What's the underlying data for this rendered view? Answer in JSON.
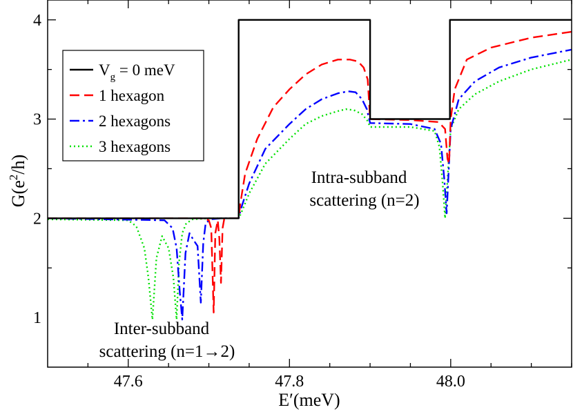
{
  "chart_data": {
    "type": "line",
    "title": "",
    "xlabel": {
      "main": "E",
      "prime": "′",
      "rest": "(meV)"
    },
    "ylabel": {
      "pre": "G(e",
      "sup": "2",
      "post": "/h)"
    },
    "xlim": [
      47.5,
      48.15
    ],
    "ylim": [
      0.5,
      4.2
    ],
    "xticks": [
      47.6,
      47.8,
      48.0
    ],
    "xtick_labels": [
      "47.6",
      "47.8",
      "48.0"
    ],
    "yticks": [
      1,
      2,
      3,
      4
    ],
    "ytick_labels": [
      "1",
      "2",
      "3",
      "4"
    ],
    "grid": false,
    "legend_position": "top-left",
    "series": [
      {
        "name": "V_g = 0 meV",
        "legend": {
          "pre": "V",
          "sub": "g",
          "post": " = 0 meV"
        },
        "color": "#000000",
        "dash": "",
        "x": [
          47.5,
          47.737,
          47.737,
          47.9,
          47.9,
          47.999,
          47.999,
          48.15
        ],
        "y": [
          2,
          2,
          4,
          4,
          3,
          3,
          4,
          4
        ]
      },
      {
        "name": "1 hexagon",
        "legend": {
          "pre": "1 hexagon",
          "sub": "",
          "post": ""
        },
        "color": "#ff0000",
        "dash": "14,7",
        "x": [
          47.5,
          47.69,
          47.7,
          47.703,
          47.706,
          47.708,
          47.711,
          47.713,
          47.715,
          47.717,
          47.719,
          47.722,
          47.73,
          47.737,
          47.739,
          47.745,
          47.76,
          47.78,
          47.8,
          47.82,
          47.84,
          47.86,
          47.875,
          47.885,
          47.892,
          47.897,
          47.9,
          47.95,
          47.985,
          47.993,
          47.996,
          47.998,
          48.0,
          48.005,
          48.02,
          48.05,
          48.1,
          48.15
        ],
        "y": [
          2,
          2,
          1.98,
          1.9,
          1.05,
          1.85,
          1.98,
          1.8,
          1.35,
          1.9,
          1.99,
          2,
          2,
          2,
          2.15,
          2.45,
          2.8,
          3.12,
          3.3,
          3.45,
          3.55,
          3.6,
          3.6,
          3.58,
          3.52,
          3.4,
          3.0,
          2.99,
          2.97,
          2.9,
          2.6,
          2.55,
          3.0,
          3.3,
          3.6,
          3.72,
          3.82,
          3.88
        ]
      },
      {
        "name": "2 hexagons",
        "legend": {
          "pre": "2 hexagons",
          "sub": "",
          "post": ""
        },
        "color": "#0000ff",
        "dash": "14,5,3,5",
        "x": [
          47.5,
          47.645,
          47.655,
          47.66,
          47.664,
          47.667,
          47.671,
          47.676,
          47.681,
          47.686,
          47.69,
          47.693,
          47.696,
          47.702,
          47.715,
          47.737,
          47.74,
          47.75,
          47.77,
          47.8,
          47.82,
          47.84,
          47.86,
          47.873,
          47.882,
          47.89,
          47.896,
          47.9,
          47.95,
          47.98,
          47.988,
          47.992,
          47.995,
          48.0,
          48.01,
          48.03,
          48.06,
          48.1,
          48.15
        ],
        "y": [
          2,
          1.98,
          1.9,
          1.7,
          1.25,
          0.98,
          1.65,
          1.85,
          1.78,
          1.72,
          1.15,
          1.75,
          1.95,
          1.99,
          2,
          2,
          2.1,
          2.35,
          2.7,
          2.95,
          3.1,
          3.2,
          3.26,
          3.28,
          3.27,
          3.2,
          3.1,
          2.96,
          2.95,
          2.9,
          2.75,
          2.4,
          2.05,
          2.9,
          3.2,
          3.38,
          3.52,
          3.62,
          3.7
        ]
      },
      {
        "name": "3 hexagons",
        "legend": {
          "pre": "3 hexagons",
          "sub": "",
          "post": ""
        },
        "color": "#00e000",
        "dash": "2,4",
        "x": [
          47.5,
          47.6,
          47.61,
          47.62,
          47.625,
          47.63,
          47.635,
          47.642,
          47.65,
          47.656,
          47.66,
          47.663,
          47.667,
          47.672,
          47.68,
          47.7,
          47.737,
          47.74,
          47.75,
          47.77,
          47.8,
          47.82,
          47.84,
          47.86,
          47.87,
          47.88,
          47.89,
          47.897,
          47.9,
          47.95,
          47.98,
          47.986,
          47.99,
          47.993,
          48.0,
          48.01,
          48.03,
          48.06,
          48.1,
          48.15
        ],
        "y": [
          1.99,
          1.98,
          1.92,
          1.7,
          1.4,
          0.98,
          1.6,
          1.82,
          1.7,
          1.4,
          0.98,
          1.55,
          1.85,
          1.95,
          1.99,
          2,
          2,
          2.05,
          2.25,
          2.55,
          2.8,
          2.95,
          3.03,
          3.08,
          3.1,
          3.09,
          3.05,
          2.98,
          2.92,
          2.92,
          2.88,
          2.72,
          2.35,
          2.0,
          2.9,
          3.1,
          3.25,
          3.38,
          3.5,
          3.6
        ]
      }
    ],
    "annotations": [
      {
        "lines": [
          "Intra-subband",
          "scattering (n=2)"
        ]
      },
      {
        "lines": [
          "Inter-subband",
          "scattering (n=1→2)"
        ]
      }
    ]
  }
}
